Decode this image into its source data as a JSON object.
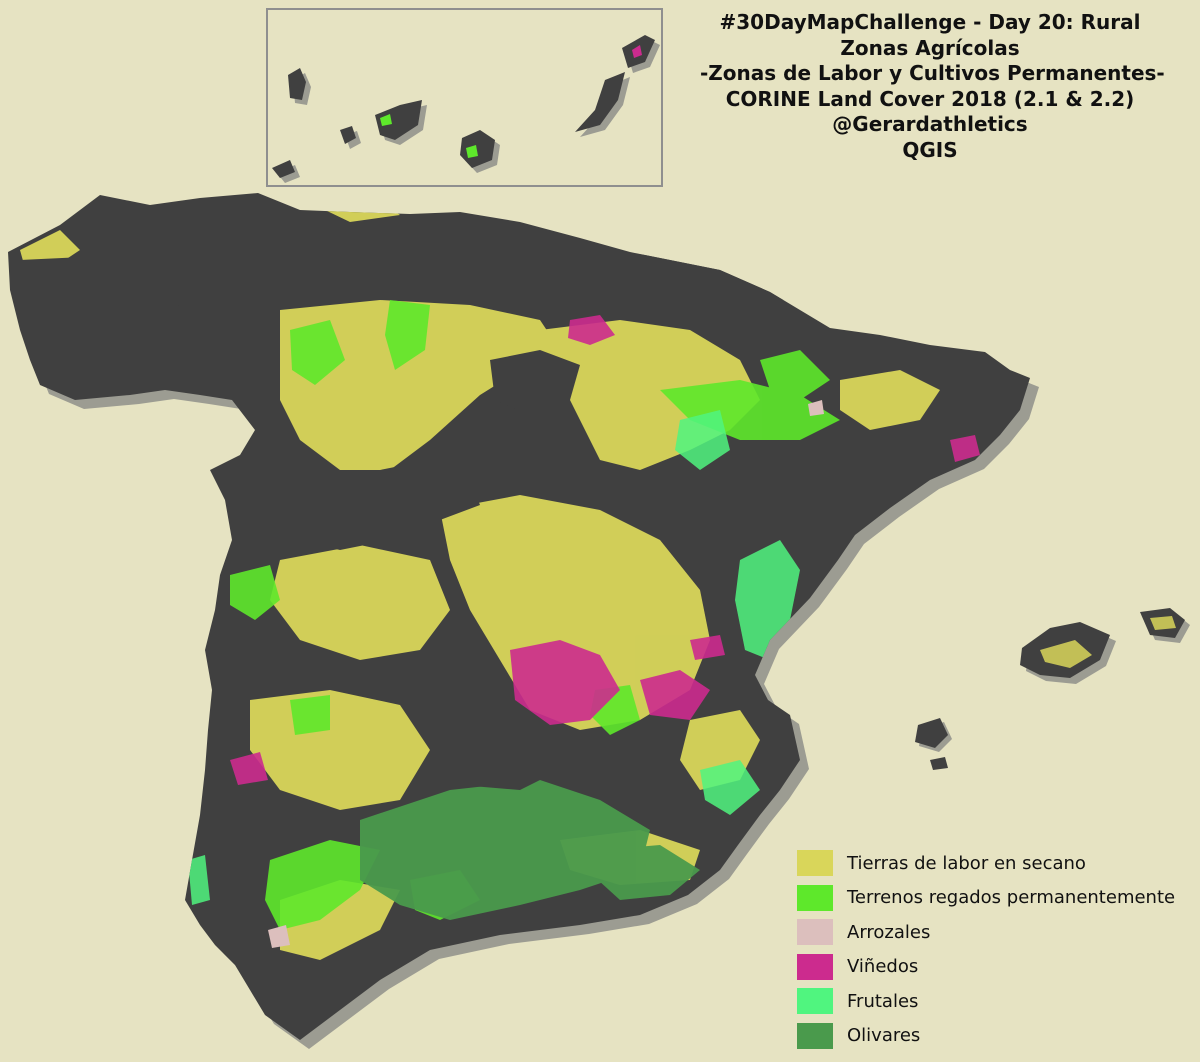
{
  "title_lines": [
    "#30DayMapChallenge - Day 20: Rural",
    "Zonas Agrícolas",
    "-Zonas de Labor y Cultivos Permanentes-",
    "CORINE Land Cover 2018 (2.1 & 2.2)",
    "@Gerardathletics",
    "QGIS"
  ],
  "legend": [
    {
      "label": "Tierras de labor en secano",
      "color": "#d9d65a"
    },
    {
      "label": "Terrenos regados permanentemente",
      "color": "#5ee82b"
    },
    {
      "label": "Arrozales",
      "color": "#dcbfbd"
    },
    {
      "label": "Viñedos",
      "color": "#cc2b8e"
    },
    {
      "label": "Frutales",
      "color": "#50f57f"
    },
    {
      "label": "Olivares",
      "color": "#4a9a4c"
    }
  ],
  "colors": {
    "background": "#e6e3c2",
    "land": "#404040",
    "shadow": "#9c9c92",
    "inset_frame": "#8f8f8f"
  }
}
